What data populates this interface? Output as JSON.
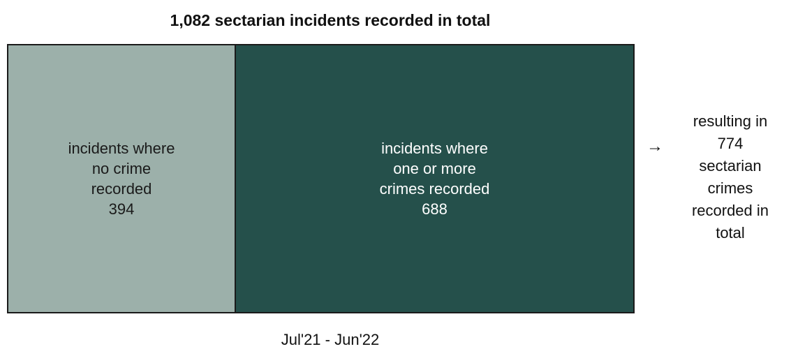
{
  "chart_data": {
    "type": "bar",
    "orientation": "horizontal-stacked",
    "title": "1,082 sectarian incidents recorded in total",
    "xlabel": "Jul'21 - Jun'22",
    "ylabel": "",
    "total": 1082,
    "segments": [
      {
        "label": "incidents where\nno crime\nrecorded",
        "value": 394,
        "value_text": "394",
        "color": "#9cb0aa",
        "text_color": "#1a1a1a"
      },
      {
        "label": "incidents where\none or more\ncrimes recorded",
        "value": 688,
        "value_text": "688",
        "color": "#25504b",
        "text_color": "#ffffff"
      }
    ],
    "annotation": {
      "arrow": "→",
      "text": "resulting in\n774\n sectarian\ncrimes\nrecorded in\ntotal",
      "value": 774
    },
    "grid": false,
    "legend": "none"
  }
}
